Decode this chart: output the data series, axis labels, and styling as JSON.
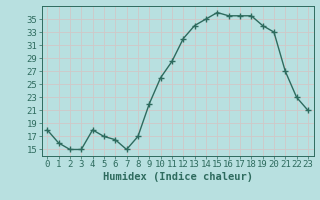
{
  "x": [
    0,
    1,
    2,
    3,
    4,
    5,
    6,
    7,
    8,
    9,
    10,
    11,
    12,
    13,
    14,
    15,
    16,
    17,
    18,
    19,
    20,
    21,
    22,
    23
  ],
  "y": [
    18,
    16,
    15,
    15,
    18,
    17,
    16.5,
    15,
    17,
    22,
    26,
    28.5,
    32,
    34,
    35,
    36,
    35.5,
    35.5,
    35.5,
    34,
    33,
    27,
    23,
    21
  ],
  "line_color": "#2e6b5e",
  "marker": "+",
  "bg_color": "#b8e0e0",
  "grid_color": "#d0c8c8",
  "xlabel": "Humidex (Indice chaleur)",
  "xlim": [
    -0.5,
    23.5
  ],
  "ylim": [
    14,
    37
  ],
  "yticks": [
    15,
    17,
    19,
    21,
    23,
    25,
    27,
    29,
    31,
    33,
    35
  ],
  "xticks": [
    0,
    1,
    2,
    3,
    4,
    5,
    6,
    7,
    8,
    9,
    10,
    11,
    12,
    13,
    14,
    15,
    16,
    17,
    18,
    19,
    20,
    21,
    22,
    23
  ],
  "tick_fontsize": 6.5,
  "label_fontsize": 7.5
}
